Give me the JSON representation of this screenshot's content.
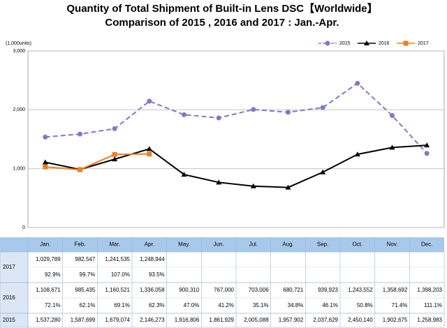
{
  "chart_data": {
    "type": "line",
    "title": "Quantity of Total Shipment of Built-in Lens DSC【Worldwide】",
    "subtitle": "Comparison of 2015 , 2016 and 2017 : Jan.-Apr.",
    "y_label": "(1,000units)",
    "categories": [
      "Jan.",
      "Feb.",
      "Mar.",
      "Apr.",
      "May.",
      "Jun.",
      "Jul.",
      "Aug.",
      "Sep.",
      "Oct.",
      "Nov.",
      "Dec."
    ],
    "ylim": [
      0,
      3000
    ],
    "yticks": [
      0,
      {
        "value": 1000,
        "label": "1,000"
      },
      {
        "value": 2000,
        "label": "2,000"
      },
      {
        "value": 3000,
        "label": "3,000"
      }
    ],
    "grid": true,
    "legend": "top-right",
    "series": [
      {
        "name": "2015",
        "color": "#7b7bcb",
        "dash": true,
        "marker": "circle",
        "values": [
          1537.28,
          1587.699,
          1679.074,
          2146.273,
          1916.806,
          1861.929,
          2005.088,
          1957.902,
          2037.629,
          2450.14,
          1902.675,
          1258.983
        ],
        "value_labels": [
          "1,537,280",
          "1,587,699",
          "1,679,074",
          "2,146,273",
          "1,916,806",
          "1,861,929",
          "2,005,088",
          "1,957,902",
          "2,037,629",
          "2,450,140",
          "1,902,675",
          "1,258,983"
        ]
      },
      {
        "name": "2016",
        "color": "#000000",
        "dash": false,
        "marker": "triangle",
        "values": [
          1108.671,
          985.435,
          1160.521,
          1336.058,
          900.31,
          767.0,
          703.006,
          680.721,
          939.923,
          1243.552,
          1358.692,
          1398.203
        ],
        "value_labels": [
          "1,108,671",
          "985,435",
          "1,160,521",
          "1,336,058",
          "900,310",
          "767,000",
          "703,006",
          "680,721",
          "939,923",
          "1,243,552",
          "1,358,692",
          "1,398,203"
        ],
        "ratios": [
          "72.1%",
          "62.1%",
          "69.1%",
          "62.3%",
          "47.0%",
          "41.2%",
          "35.1%",
          "34.8%",
          "46.1%",
          "50.8%",
          "71.4%",
          "111.1%"
        ]
      },
      {
        "name": "2017",
        "color": "#f07d1e",
        "dash": false,
        "marker": "square",
        "values": [
          1029.789,
          982.547,
          1241.535,
          1248.944,
          null,
          null,
          null,
          null,
          null,
          null,
          null,
          null
        ],
        "value_labels": [
          "1,029,789",
          "982,547",
          "1,241,535",
          "1,248,944",
          null,
          null,
          null,
          null,
          null,
          null,
          null,
          null
        ],
        "ratios": [
          "92.9%",
          "99.7%",
          "107.0%",
          "93.5%",
          null,
          null,
          null,
          null,
          null,
          null,
          null,
          null
        ]
      }
    ]
  }
}
